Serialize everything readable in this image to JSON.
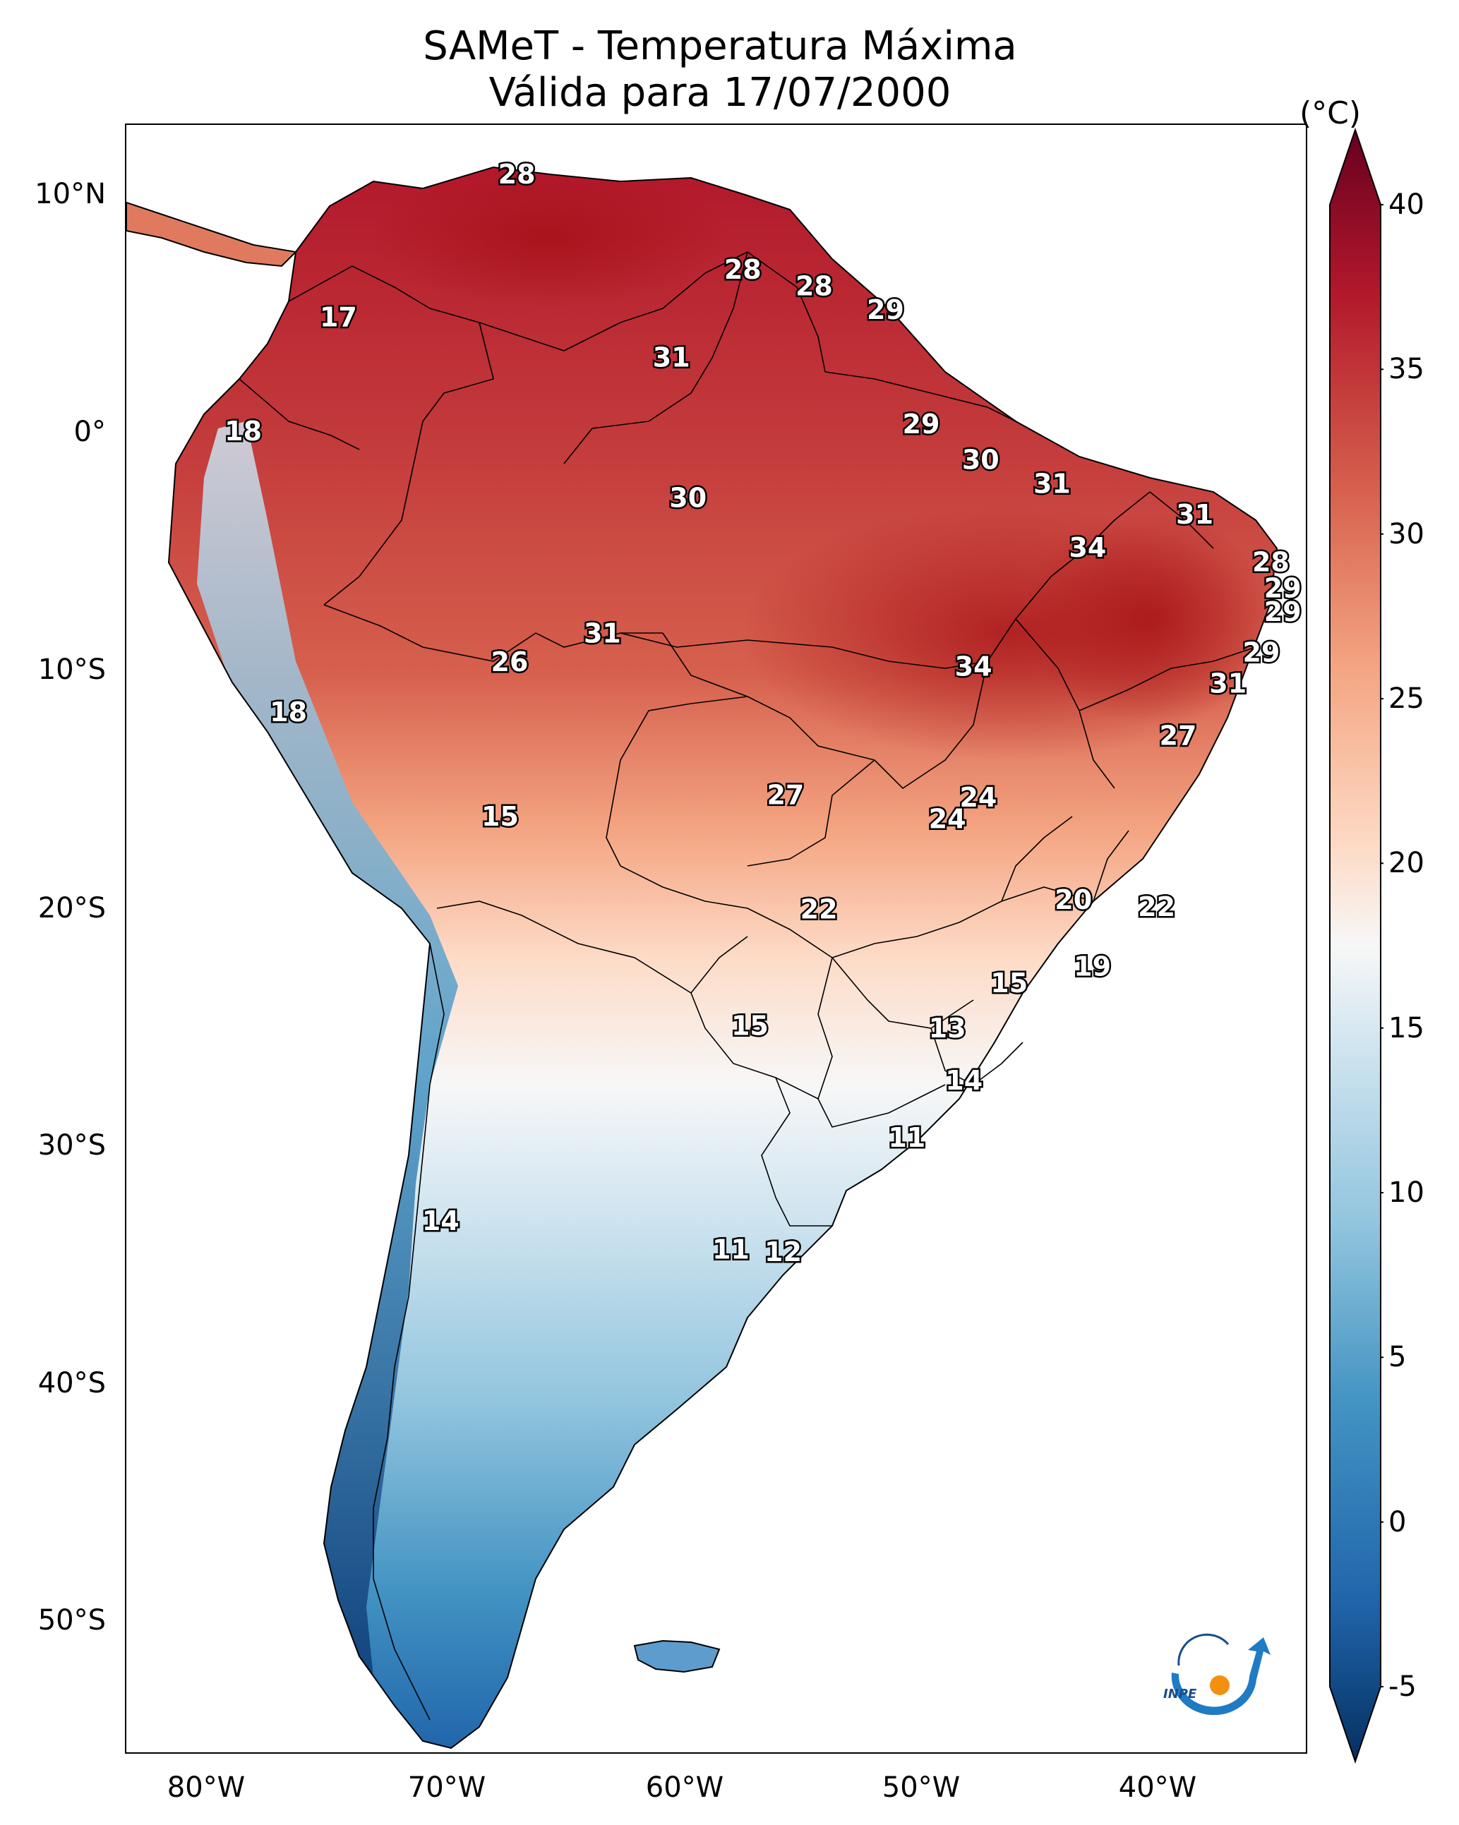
{
  "title": {
    "line1": "SAMeT - Temperatura Máxima",
    "line2": "Válida para 17/07/2000"
  },
  "axes": {
    "lat_labels": [
      "10°N",
      "0°",
      "10°S",
      "20°S",
      "30°S",
      "40°S",
      "50°S"
    ],
    "lon_labels": [
      "80°W",
      "70°W",
      "60°W",
      "50°W",
      "40°W"
    ]
  },
  "colorbar": {
    "unit": "(°C)",
    "min": -5,
    "max": 40,
    "ticks": [
      "40",
      "35",
      "30",
      "25",
      "20",
      "15",
      "10",
      "5",
      "0",
      "-5"
    ],
    "colors": [
      "#67001f",
      "#b2182b",
      "#d6604d",
      "#f4a582",
      "#fddbc7",
      "#f7f7f7",
      "#d1e5f0",
      "#92c5de",
      "#4393c3",
      "#2166ac",
      "#053061"
    ]
  },
  "logo": {
    "text": "INPE"
  },
  "station_labels": [
    {
      "value": "28",
      "lon": -67.0,
      "lat": 10.5
    },
    {
      "value": "17",
      "lon": -74.5,
      "lat": 4.5
    },
    {
      "value": "28",
      "lon": -57.5,
      "lat": 6.5
    },
    {
      "value": "28",
      "lon": -54.5,
      "lat": 5.8
    },
    {
      "value": "29",
      "lon": -51.5,
      "lat": 4.8
    },
    {
      "value": "31",
      "lon": -60.5,
      "lat": 2.8
    },
    {
      "value": "18",
      "lon": -78.5,
      "lat": -0.3
    },
    {
      "value": "29",
      "lon": -50.0,
      "lat": 0.0
    },
    {
      "value": "30",
      "lon": -47.5,
      "lat": -1.5
    },
    {
      "value": "31",
      "lon": -44.5,
      "lat": -2.5
    },
    {
      "value": "30",
      "lon": -59.8,
      "lat": -3.1
    },
    {
      "value": "31",
      "lon": -38.5,
      "lat": -3.8
    },
    {
      "value": "34",
      "lon": -43.0,
      "lat": -5.2
    },
    {
      "value": "28",
      "lon": -35.3,
      "lat": -5.8
    },
    {
      "value": "29",
      "lon": -34.8,
      "lat": -6.9
    },
    {
      "value": "29",
      "lon": -34.8,
      "lat": -7.9
    },
    {
      "value": "31",
      "lon": -63.4,
      "lat": -8.8
    },
    {
      "value": "26",
      "lon": -67.3,
      "lat": -10.0
    },
    {
      "value": "34",
      "lon": -47.8,
      "lat": -10.2
    },
    {
      "value": "29",
      "lon": -35.7,
      "lat": -9.6
    },
    {
      "value": "31",
      "lon": -37.1,
      "lat": -10.9
    },
    {
      "value": "18",
      "lon": -76.6,
      "lat": -12.1
    },
    {
      "value": "27",
      "lon": -39.2,
      "lat": -13.1
    },
    {
      "value": "27",
      "lon": -55.7,
      "lat": -15.6
    },
    {
      "value": "24",
      "lon": -47.6,
      "lat": -15.7
    },
    {
      "value": "24",
      "lon": -48.9,
      "lat": -16.6
    },
    {
      "value": "15",
      "lon": -67.7,
      "lat": -16.5
    },
    {
      "value": "20",
      "lon": -43.6,
      "lat": -20.0
    },
    {
      "value": "22",
      "lon": -40.1,
      "lat": -20.3
    },
    {
      "value": "22",
      "lon": -54.3,
      "lat": -20.4
    },
    {
      "value": "19",
      "lon": -42.8,
      "lat": -22.8
    },
    {
      "value": "15",
      "lon": -46.3,
      "lat": -23.5
    },
    {
      "value": "15",
      "lon": -57.2,
      "lat": -25.3
    },
    {
      "value": "13",
      "lon": -48.9,
      "lat": -25.4
    },
    {
      "value": "14",
      "lon": -48.2,
      "lat": -27.6
    },
    {
      "value": "11",
      "lon": -50.6,
      "lat": -30.0
    },
    {
      "value": "14",
      "lon": -70.2,
      "lat": -33.5
    },
    {
      "value": "11",
      "lon": -58.0,
      "lat": -34.7
    },
    {
      "value": "12",
      "lon": -55.8,
      "lat": -34.8
    }
  ]
}
